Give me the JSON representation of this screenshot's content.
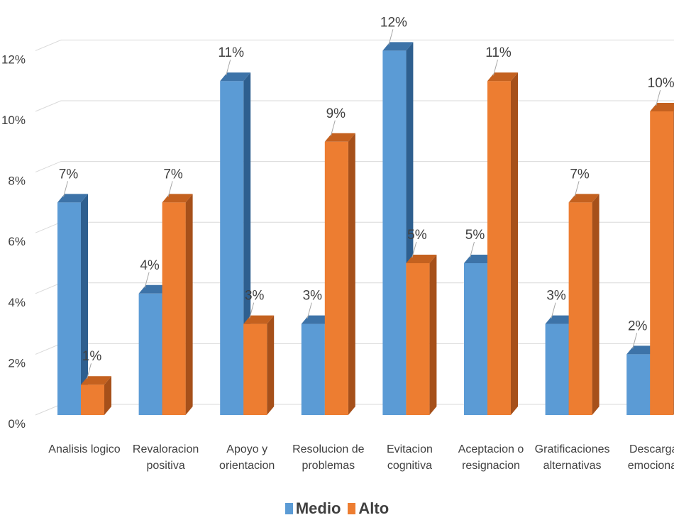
{
  "chart_data": {
    "type": "bar",
    "categories": [
      [
        "Analisis logico"
      ],
      [
        "Revaloracion",
        "positiva"
      ],
      [
        "Apoyo y",
        "orientacion"
      ],
      [
        "Resolucion de",
        "problemas"
      ],
      [
        "Evitacion",
        "cognitiva"
      ],
      [
        "Aceptacion o",
        "resignacion"
      ],
      [
        "Gratificaciones",
        "alternativas"
      ],
      [
        "Descarga",
        "emocional"
      ]
    ],
    "series": [
      {
        "name": "Medio",
        "values": [
          7,
          4,
          11,
          3,
          12,
          5,
          3,
          2
        ],
        "labels": [
          "7%",
          "4%",
          "11%",
          "3%",
          "12%",
          "5%",
          "3%",
          "2%"
        ]
      },
      {
        "name": "Alto",
        "values": [
          1,
          7,
          3,
          9,
          5,
          11,
          7,
          10
        ],
        "labels": [
          "1%",
          "7%",
          "3%",
          "9%",
          "5%",
          "11%",
          "7%",
          "10%"
        ]
      }
    ],
    "yticks": [
      "0%",
      "2%",
      "4%",
      "6%",
      "8%",
      "10%",
      "12%"
    ],
    "ylim": [
      0,
      12
    ],
    "grid": true,
    "legend_position": "bottom",
    "colors": {
      "Medio": {
        "front": "#5b9bd5",
        "side": "#2e5f8f",
        "top": "#3d73a8"
      },
      "Alto": {
        "front": "#ed7d31",
        "side": "#a6501a",
        "top": "#c4611f"
      },
      "grid": "#d9d9d9",
      "text": "#404040"
    }
  }
}
